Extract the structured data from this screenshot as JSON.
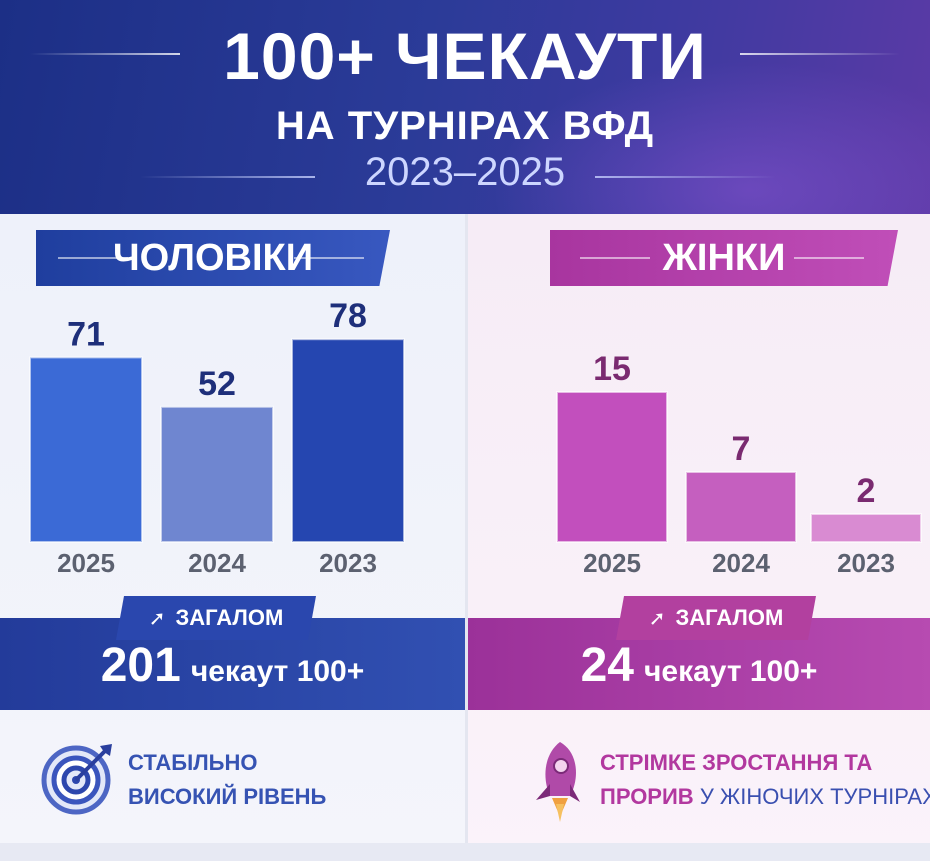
{
  "header": {
    "title": "100+ ЧЕКАУТИ",
    "subtitle": "НА ТУРНІРАХ ВФД",
    "years": "2023–2025"
  },
  "men": {
    "label": "ЧОЛОВІКИ",
    "badge": "ЗАГАЛОМ",
    "total": "201",
    "total_label": "чекаут 100+",
    "note_line1": "СТАБІЛЬНО",
    "note_line2": "ВИСОКИЙ РІВЕНЬ"
  },
  "women": {
    "label": "ЖІНКИ",
    "badge": "ЗАГАЛОМ",
    "total": "24",
    "total_label": "чекаут 100+",
    "note_line1_bold": "СТРІМКЕ ЗРОСТАННЯ ТА",
    "note_line2_bold": "ПРОРИВ",
    "note_line2_rest": "У ЖІНОЧИХ ТУРНІРАХ"
  },
  "colors": {
    "men_accent": "#2a47ae",
    "women_accent": "#b2409f"
  },
  "chart_data": [
    {
      "type": "bar",
      "title": "ЧОЛОВІКИ",
      "categories": [
        "2025",
        "2024",
        "2023"
      ],
      "values": [
        71,
        52,
        78
      ],
      "colors": [
        "#3b6ad6",
        "#6f86d0",
        "#2546b0"
      ],
      "grid": false
    },
    {
      "type": "bar",
      "title": "ЖІНКИ",
      "categories": [
        "2025",
        "2024",
        "2023"
      ],
      "values": [
        15,
        7,
        2
      ],
      "colors": [
        "#c24fbd",
        "#c55fbf",
        "#d98bd2"
      ],
      "grid": false
    }
  ]
}
